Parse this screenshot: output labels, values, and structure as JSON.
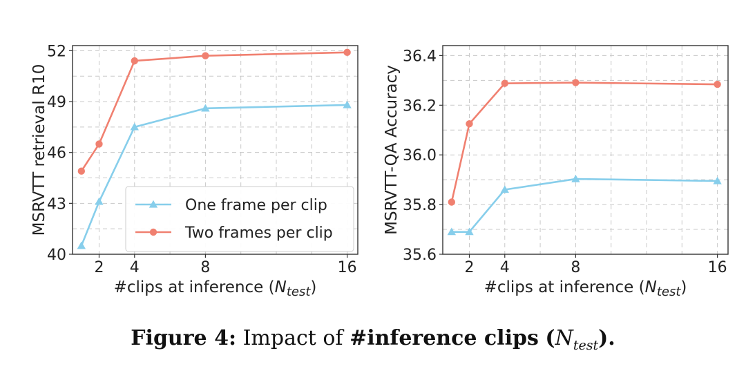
{
  "chart_data": [
    {
      "type": "line",
      "ylabel": "MSRVTT retrieval R10",
      "xlabel": "#clips at inference (N",
      "xlabel_sub": "test",
      "xlabel_end": ")",
      "xlim": [
        0.5,
        16.6
      ],
      "ylim": [
        40,
        52.3
      ],
      "xticks": [
        2,
        4,
        8,
        16
      ],
      "yticks": [
        40,
        43,
        46,
        49,
        52
      ],
      "x_grid": [
        2,
        4,
        6,
        8,
        10,
        12,
        14,
        16
      ],
      "grid": true,
      "legend_position": "lower-right",
      "x": [
        1,
        2,
        4,
        8,
        16
      ],
      "series": [
        {
          "name": "One frame per clip",
          "color": "#87ceeb",
          "marker": "triangle",
          "values": [
            40.5,
            43.1,
            47.5,
            48.6,
            48.8
          ]
        },
        {
          "name": "Two frames per clip",
          "color": "#f08070",
          "marker": "circle",
          "values": [
            44.9,
            46.5,
            51.4,
            51.7,
            51.9
          ]
        }
      ]
    },
    {
      "type": "line",
      "ylabel": "MSRVTT-QA Accuracy",
      "xlabel": "#clips at inference (N",
      "xlabel_sub": "test",
      "xlabel_end": ")",
      "xlim": [
        0.5,
        16.6
      ],
      "ylim": [
        35.6,
        36.44
      ],
      "xticks": [
        2,
        4,
        8,
        16
      ],
      "yticks": [
        35.6,
        35.8,
        36.0,
        36.2,
        36.4
      ],
      "x_grid": [
        2,
        4,
        6,
        8,
        10,
        12,
        14,
        16
      ],
      "grid": true,
      "legend_position": "none",
      "x": [
        1,
        2,
        4,
        8,
        16
      ],
      "series": [
        {
          "name": "One frame per clip",
          "color": "#87ceeb",
          "marker": "triangle",
          "values": [
            35.69,
            35.69,
            35.86,
            35.903,
            35.895
          ]
        },
        {
          "name": "Two frames per clip",
          "color": "#f08070",
          "marker": "circle",
          "values": [
            35.81,
            36.125,
            36.288,
            36.291,
            36.284
          ]
        }
      ]
    }
  ],
  "caption": {
    "figure_label": "Figure 4:",
    "text": "Impact of",
    "bold_text": "#inference clips",
    "paren_open": "(",
    "math_symbol": "N",
    "math_sub": "test",
    "paren_close": ").",
    "full_text": "Figure 4: Impact of #inference clips (N_test)."
  }
}
